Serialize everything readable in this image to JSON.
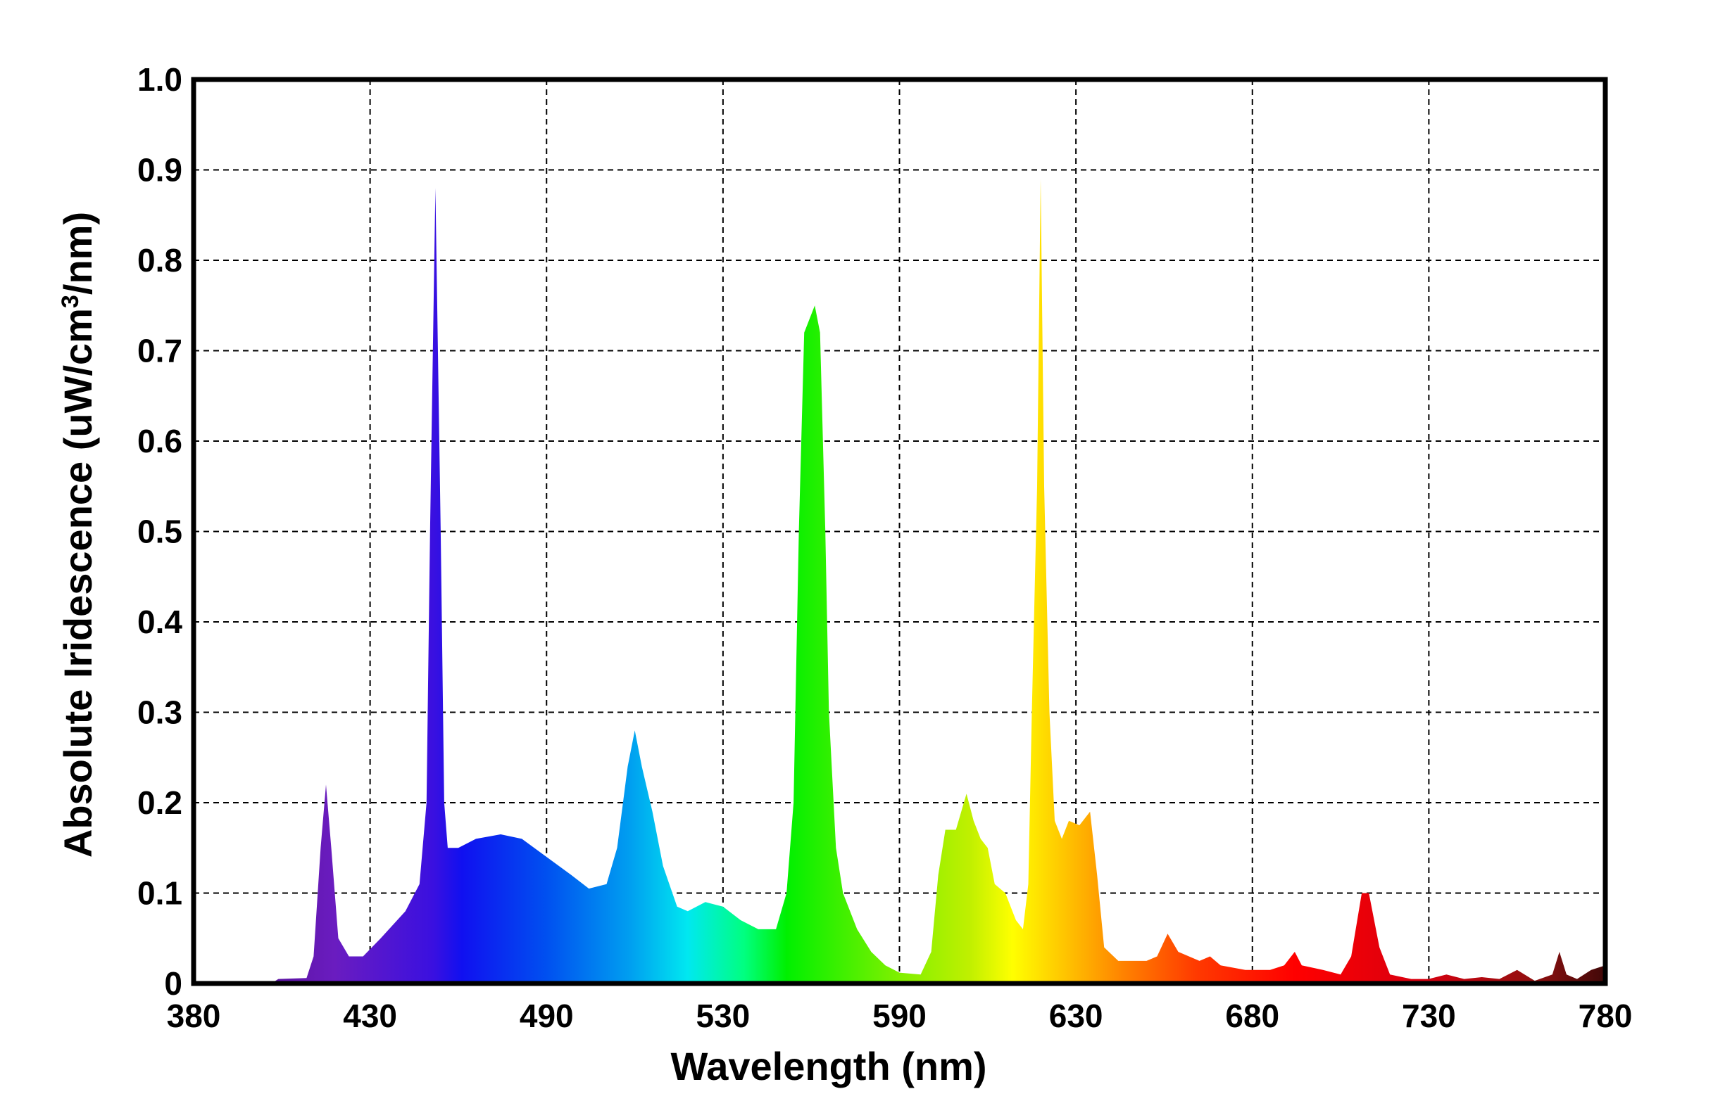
{
  "chart_data": {
    "type": "area",
    "title": "",
    "xlabel": "Wavelength (nm)",
    "ylabel_parts": [
      "Absolute Iridescence (uW/cm",
      "3",
      "/nm)"
    ],
    "x_tick_labels": [
      "380",
      "430",
      "490",
      "530",
      "590",
      "630",
      "680",
      "730",
      "780"
    ],
    "y_tick_labels": [
      "0",
      "0.1",
      "0.2",
      "0.3",
      "0.4",
      "0.5",
      "0.6",
      "0.7",
      "0.8",
      "0.9",
      "1.0"
    ],
    "xlim": [
      380,
      780
    ],
    "ylim": [
      0,
      1.0
    ],
    "grid": true,
    "series": [
      {
        "values": [
          [
            380,
            0
          ],
          [
            402,
            0
          ],
          [
            404,
            0.005
          ],
          [
            412,
            0.006
          ],
          [
            414,
            0.03
          ],
          [
            416,
            0.15
          ],
          [
            417.5,
            0.22
          ],
          [
            419,
            0.15
          ],
          [
            421,
            0.05
          ],
          [
            424,
            0.03
          ],
          [
            428,
            0.03
          ],
          [
            433,
            0.05
          ],
          [
            440,
            0.08
          ],
          [
            444,
            0.11
          ],
          [
            446,
            0.2
          ],
          [
            447,
            0.5
          ],
          [
            448.5,
            0.88
          ],
          [
            450,
            0.5
          ],
          [
            451,
            0.2
          ],
          [
            452,
            0.15
          ],
          [
            455,
            0.15
          ],
          [
            460,
            0.16
          ],
          [
            467,
            0.165
          ],
          [
            473,
            0.16
          ],
          [
            480,
            0.14
          ],
          [
            487,
            0.12
          ],
          [
            492,
            0.105
          ],
          [
            497,
            0.11
          ],
          [
            500,
            0.15
          ],
          [
            503,
            0.24
          ],
          [
            505,
            0.28
          ],
          [
            507,
            0.24
          ],
          [
            510,
            0.19
          ],
          [
            513,
            0.13
          ],
          [
            517,
            0.085
          ],
          [
            520,
            0.08
          ],
          [
            525,
            0.09
          ],
          [
            530,
            0.085
          ],
          [
            535,
            0.07
          ],
          [
            540,
            0.06
          ],
          [
            545,
            0.06
          ],
          [
            548,
            0.1
          ],
          [
            550,
            0.2
          ],
          [
            551.5,
            0.5
          ],
          [
            553,
            0.72
          ],
          [
            556,
            0.75
          ],
          [
            557.5,
            0.72
          ],
          [
            559,
            0.5
          ],
          [
            560,
            0.3
          ],
          [
            562,
            0.15
          ],
          [
            564,
            0.1
          ],
          [
            568,
            0.06
          ],
          [
            572,
            0.035
          ],
          [
            576,
            0.02
          ],
          [
            580,
            0.012
          ],
          [
            586,
            0.01
          ],
          [
            589,
            0.035
          ],
          [
            591,
            0.12
          ],
          [
            593,
            0.17
          ],
          [
            596,
            0.17
          ],
          [
            599,
            0.21
          ],
          [
            601,
            0.18
          ],
          [
            603,
            0.16
          ],
          [
            605,
            0.15
          ],
          [
            607,
            0.11
          ],
          [
            610,
            0.1
          ],
          [
            613,
            0.07
          ],
          [
            615,
            0.06
          ],
          [
            616.5,
            0.11
          ],
          [
            617.5,
            0.3
          ],
          [
            619,
            0.55
          ],
          [
            620,
            0.89
          ],
          [
            621,
            0.55
          ],
          [
            622.5,
            0.3
          ],
          [
            624,
            0.18
          ],
          [
            626,
            0.16
          ],
          [
            628,
            0.18
          ],
          [
            631,
            0.175
          ],
          [
            634,
            0.19
          ],
          [
            636,
            0.12
          ],
          [
            638,
            0.04
          ],
          [
            642,
            0.025
          ],
          [
            650,
            0.025
          ],
          [
            653,
            0.03
          ],
          [
            656,
            0.055
          ],
          [
            659,
            0.035
          ],
          [
            665,
            0.025
          ],
          [
            668,
            0.03
          ],
          [
            671,
            0.02
          ],
          [
            678,
            0.015
          ],
          [
            685,
            0.015
          ],
          [
            689,
            0.02
          ],
          [
            692,
            0.035
          ],
          [
            694,
            0.02
          ],
          [
            700,
            0.015
          ],
          [
            705,
            0.01
          ],
          [
            708,
            0.03
          ],
          [
            711,
            0.1
          ],
          [
            713,
            0.1
          ],
          [
            716,
            0.04
          ],
          [
            719,
            0.01
          ],
          [
            725,
            0.005
          ],
          [
            730,
            0.005
          ],
          [
            735,
            0.01
          ],
          [
            740,
            0.005
          ],
          [
            745,
            0.007
          ],
          [
            750,
            0.005
          ],
          [
            755,
            0.015
          ],
          [
            760,
            0.003
          ],
          [
            765,
            0.01
          ],
          [
            767,
            0.035
          ],
          [
            769,
            0.01
          ],
          [
            772,
            0.005
          ],
          [
            776,
            0.015
          ],
          [
            780,
            0.02
          ]
        ]
      }
    ]
  }
}
